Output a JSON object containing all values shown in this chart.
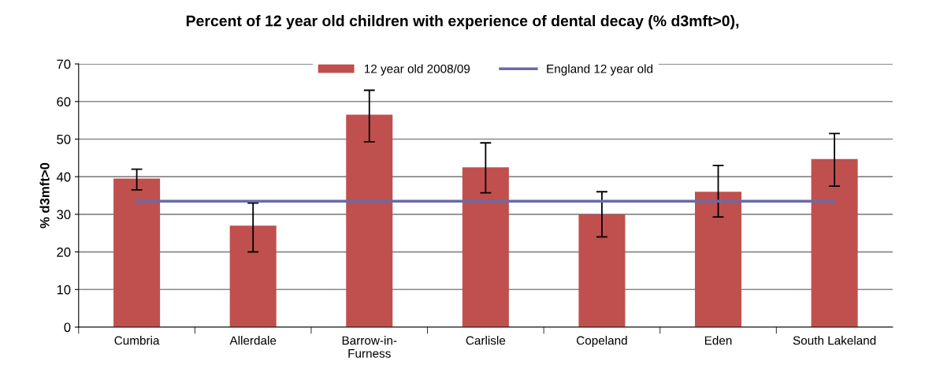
{
  "chart_data": {
    "type": "bar",
    "title": "Percent of 12 year old children with experience of dental decay (% d3mft>0),",
    "ylabel": "% d3mft>0",
    "categories": [
      "Cumbria",
      "Allerdale",
      "Barrow-in-\nFurness",
      "Carlisle",
      "Copeland",
      "Eden",
      "South Lakeland"
    ],
    "series": [
      {
        "name": "12 year old 2008/09",
        "color": "#c0504d",
        "values": [
          39.5,
          27,
          56.5,
          42.5,
          30,
          36,
          44.7
        ],
        "errors": [
          [
            36.5,
            42
          ],
          [
            20,
            33
          ],
          [
            49.3,
            63
          ],
          [
            35.7,
            49
          ],
          [
            24,
            36
          ],
          [
            29.3,
            43
          ],
          [
            37.5,
            51.5
          ]
        ]
      },
      {
        "name": "England 12 year old",
        "type": "line",
        "color": "#6a6aa8",
        "values": [
          33.5,
          33.5,
          33.5,
          33.5,
          33.5,
          33.5,
          33.5
        ]
      }
    ],
    "ylim": [
      0,
      70
    ],
    "yticks": [
      0,
      10,
      20,
      30,
      40,
      50,
      60,
      70
    ],
    "grid": "y",
    "legend": "top"
  }
}
